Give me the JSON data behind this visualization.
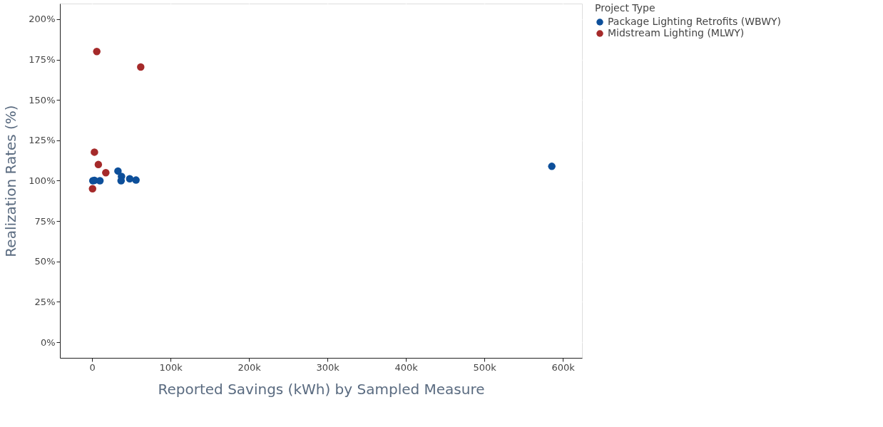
{
  "chart_data": {
    "type": "scatter",
    "xlabel": "Reported Savings (kWh) by Sampled Measure",
    "ylabel": "Realization Rates (%)",
    "legend_title": "Project Type",
    "series": [
      {
        "name": "Package Lighting Retrofits (WBWY)",
        "color": "#0d4f9a",
        "x": [
          1,
          3,
          10,
          33,
          37.5,
          37,
          48,
          56,
          586
        ],
        "values": [
          100,
          100.2,
          100,
          106,
          102.7,
          100,
          101.2,
          100.4,
          108.9
        ]
      },
      {
        "name": "Midstream Lighting (MLWY)",
        "color": "#a52a2a",
        "x": [
          6,
          62,
          3,
          8,
          17.5,
          0.6
        ],
        "values": [
          180,
          170.4,
          117.7,
          110,
          105,
          95
        ]
      }
    ],
    "xlim": [
      -41,
      624.5
    ],
    "ylim": [
      -9.7,
      209.7
    ],
    "xticks": [
      0,
      {
        "value": 100,
        "label": "100k"
      },
      {
        "value": 200,
        "label": "200k"
      },
      {
        "value": 300,
        "label": "300k"
      },
      {
        "value": 400,
        "label": "400k"
      },
      {
        "value": 500,
        "label": "500k"
      },
      {
        "value": 600,
        "label": "600k"
      }
    ],
    "yticks": [
      {
        "value": 0,
        "label": "0%"
      },
      {
        "value": 25,
        "label": "25%"
      },
      {
        "value": 50,
        "label": "50%"
      },
      {
        "value": 75,
        "label": "75%"
      },
      {
        "value": 100,
        "label": "100%"
      },
      {
        "value": 125,
        "label": "125%"
      },
      {
        "value": 150,
        "label": "150%"
      },
      {
        "value": 175,
        "label": "175%"
      },
      {
        "value": 200,
        "label": "200%"
      }
    ],
    "grid": true,
    "legend": "top right",
    "marker": "circle"
  }
}
